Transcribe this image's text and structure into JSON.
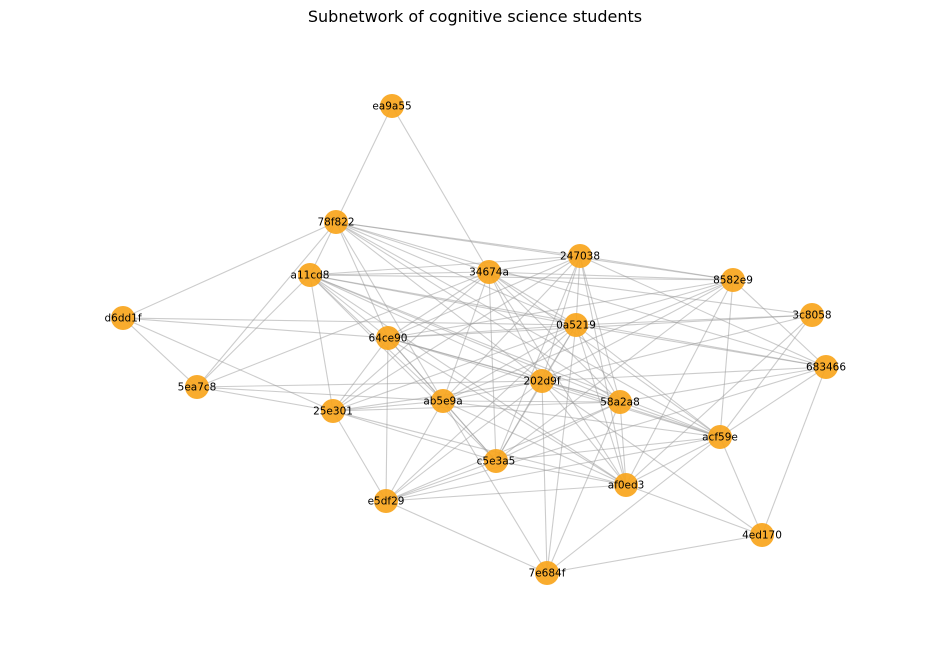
{
  "title": "Subnetwork of cognitive science students",
  "colors": {
    "node_fill": "#f9a51c",
    "edge": "#9a9a9a",
    "label": "#000000",
    "background": "#ffffff"
  },
  "nodes": [
    {
      "id": "ea9a55"
    },
    {
      "id": "78f822"
    },
    {
      "id": "247038"
    },
    {
      "id": "a11cd8"
    },
    {
      "id": "34674a"
    },
    {
      "id": "8582e9"
    },
    {
      "id": "d6dd1f"
    },
    {
      "id": "3c8058"
    },
    {
      "id": "0a5219"
    },
    {
      "id": "64ce90"
    },
    {
      "id": "683466"
    },
    {
      "id": "202d9f"
    },
    {
      "id": "5ea7c8"
    },
    {
      "id": "ab5e9a"
    },
    {
      "id": "58a2a8"
    },
    {
      "id": "25e301"
    },
    {
      "id": "acf59e"
    },
    {
      "id": "c5e3a5"
    },
    {
      "id": "af0ed3"
    },
    {
      "id": "e5df29"
    },
    {
      "id": "4ed170"
    },
    {
      "id": "7e684f"
    }
  ],
  "edges": [
    [
      "ea9a55",
      "78f822"
    ],
    [
      "ea9a55",
      "34674a"
    ],
    [
      "78f822",
      "a11cd8"
    ],
    [
      "78f822",
      "d6dd1f"
    ],
    [
      "78f822",
      "5ea7c8"
    ],
    [
      "78f822",
      "64ce90"
    ],
    [
      "78f822",
      "34674a"
    ],
    [
      "78f822",
      "247038"
    ],
    [
      "78f822",
      "0a5219"
    ],
    [
      "78f822",
      "202d9f"
    ],
    [
      "78f822",
      "ab5e9a"
    ],
    [
      "78f822",
      "58a2a8"
    ],
    [
      "78f822",
      "8582e9"
    ],
    [
      "78f822",
      "683466"
    ],
    [
      "78f822",
      "acf59e"
    ],
    [
      "a11cd8",
      "34674a"
    ],
    [
      "a11cd8",
      "247038"
    ],
    [
      "a11cd8",
      "64ce90"
    ],
    [
      "a11cd8",
      "5ea7c8"
    ],
    [
      "a11cd8",
      "25e301"
    ],
    [
      "a11cd8",
      "ab5e9a"
    ],
    [
      "a11cd8",
      "202d9f"
    ],
    [
      "a11cd8",
      "0a5219"
    ],
    [
      "a11cd8",
      "c5e3a5"
    ],
    [
      "a11cd8",
      "acf59e"
    ],
    [
      "a11cd8",
      "58a2a8"
    ],
    [
      "a11cd8",
      "af0ed3"
    ],
    [
      "a11cd8",
      "683466"
    ],
    [
      "a11cd8",
      "8582e9"
    ],
    [
      "d6dd1f",
      "5ea7c8"
    ],
    [
      "d6dd1f",
      "25e301"
    ],
    [
      "d6dd1f",
      "64ce90"
    ],
    [
      "d6dd1f",
      "0a5219"
    ],
    [
      "5ea7c8",
      "25e301"
    ],
    [
      "5ea7c8",
      "202d9f"
    ],
    [
      "5ea7c8",
      "ab5e9a"
    ],
    [
      "5ea7c8",
      "34674a"
    ],
    [
      "247038",
      "34674a"
    ],
    [
      "247038",
      "0a5219"
    ],
    [
      "247038",
      "8582e9"
    ],
    [
      "247038",
      "683466"
    ],
    [
      "247038",
      "64ce90"
    ],
    [
      "247038",
      "ab5e9a"
    ],
    [
      "247038",
      "202d9f"
    ],
    [
      "247038",
      "58a2a8"
    ],
    [
      "247038",
      "25e301"
    ],
    [
      "247038",
      "c5e3a5"
    ],
    [
      "247038",
      "af0ed3"
    ],
    [
      "34674a",
      "64ce90"
    ],
    [
      "34674a",
      "0a5219"
    ],
    [
      "34674a",
      "202d9f"
    ],
    [
      "34674a",
      "ab5e9a"
    ],
    [
      "34674a",
      "c5e3a5"
    ],
    [
      "34674a",
      "58a2a8"
    ],
    [
      "34674a",
      "25e301"
    ],
    [
      "34674a",
      "8582e9"
    ],
    [
      "34674a",
      "3c8058"
    ],
    [
      "34674a",
      "acf59e"
    ],
    [
      "34674a",
      "af0ed3"
    ],
    [
      "8582e9",
      "0a5219"
    ],
    [
      "8582e9",
      "202d9f"
    ],
    [
      "8582e9",
      "64ce90"
    ],
    [
      "8582e9",
      "ab5e9a"
    ],
    [
      "8582e9",
      "acf59e"
    ],
    [
      "8582e9",
      "af0ed3"
    ],
    [
      "8582e9",
      "683466"
    ],
    [
      "8582e9",
      "c5e3a5"
    ],
    [
      "3c8058",
      "0a5219"
    ],
    [
      "3c8058",
      "64ce90"
    ],
    [
      "3c8058",
      "acf59e"
    ],
    [
      "3c8058",
      "af0ed3"
    ],
    [
      "3c8058",
      "202d9f"
    ],
    [
      "0a5219",
      "64ce90"
    ],
    [
      "0a5219",
      "202d9f"
    ],
    [
      "0a5219",
      "ab5e9a"
    ],
    [
      "0a5219",
      "c5e3a5"
    ],
    [
      "0a5219",
      "58a2a8"
    ],
    [
      "0a5219",
      "acf59e"
    ],
    [
      "0a5219",
      "af0ed3"
    ],
    [
      "0a5219",
      "e5df29"
    ],
    [
      "0a5219",
      "25e301"
    ],
    [
      "0a5219",
      "683466"
    ],
    [
      "0a5219",
      "7e684f"
    ],
    [
      "64ce90",
      "ab5e9a"
    ],
    [
      "64ce90",
      "202d9f"
    ],
    [
      "64ce90",
      "c5e3a5"
    ],
    [
      "64ce90",
      "58a2a8"
    ],
    [
      "64ce90",
      "25e301"
    ],
    [
      "64ce90",
      "e5df29"
    ],
    [
      "64ce90",
      "af0ed3"
    ],
    [
      "64ce90",
      "acf59e"
    ],
    [
      "683466",
      "202d9f"
    ],
    [
      "683466",
      "acf59e"
    ],
    [
      "683466",
      "4ed170"
    ],
    [
      "683466",
      "e5df29"
    ],
    [
      "683466",
      "58a2a8"
    ],
    [
      "202d9f",
      "ab5e9a"
    ],
    [
      "202d9f",
      "58a2a8"
    ],
    [
      "202d9f",
      "c5e3a5"
    ],
    [
      "202d9f",
      "acf59e"
    ],
    [
      "202d9f",
      "af0ed3"
    ],
    [
      "202d9f",
      "25e301"
    ],
    [
      "202d9f",
      "e5df29"
    ],
    [
      "202d9f",
      "7e684f"
    ],
    [
      "202d9f",
      "4ed170"
    ],
    [
      "ab5e9a",
      "58a2a8"
    ],
    [
      "ab5e9a",
      "25e301"
    ],
    [
      "ab5e9a",
      "c5e3a5"
    ],
    [
      "ab5e9a",
      "af0ed3"
    ],
    [
      "ab5e9a",
      "e5df29"
    ],
    [
      "ab5e9a",
      "acf59e"
    ],
    [
      "ab5e9a",
      "7e684f"
    ],
    [
      "58a2a8",
      "acf59e"
    ],
    [
      "58a2a8",
      "c5e3a5"
    ],
    [
      "58a2a8",
      "af0ed3"
    ],
    [
      "58a2a8",
      "25e301"
    ],
    [
      "58a2a8",
      "7e684f"
    ],
    [
      "58a2a8",
      "e5df29"
    ],
    [
      "25e301",
      "c5e3a5"
    ],
    [
      "25e301",
      "af0ed3"
    ],
    [
      "25e301",
      "e5df29"
    ],
    [
      "acf59e",
      "c5e3a5"
    ],
    [
      "acf59e",
      "af0ed3"
    ],
    [
      "acf59e",
      "4ed170"
    ],
    [
      "acf59e",
      "7e684f"
    ],
    [
      "acf59e",
      "e5df29"
    ],
    [
      "c5e3a5",
      "af0ed3"
    ],
    [
      "c5e3a5",
      "e5df29"
    ],
    [
      "af0ed3",
      "e5df29"
    ],
    [
      "af0ed3",
      "4ed170"
    ],
    [
      "e5df29",
      "7e684f"
    ],
    [
      "7e684f",
      "4ed170"
    ]
  ]
}
